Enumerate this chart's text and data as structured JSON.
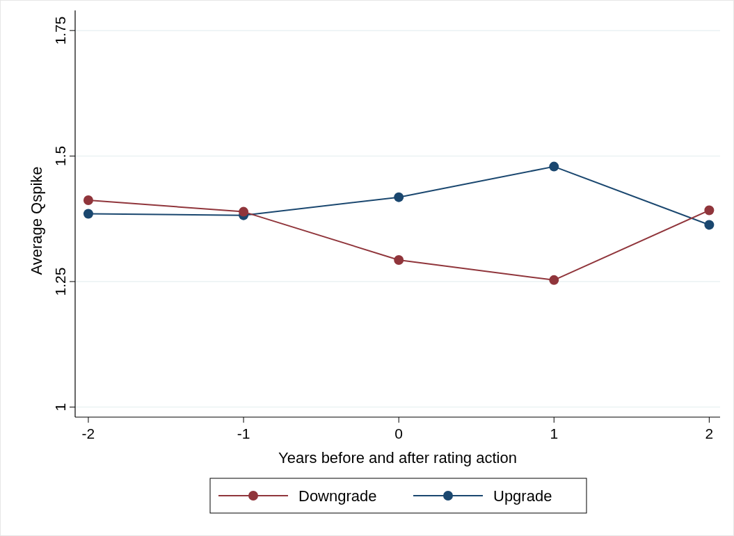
{
  "chart_data": {
    "type": "line",
    "xlabel": "Years before and after rating action",
    "ylabel": "Average Qspike",
    "x": [
      -2,
      -1,
      0,
      1,
      2
    ],
    "series": [
      {
        "name": "Downgrade",
        "color": "#90353b",
        "values": [
          1.412,
          1.389,
          1.293,
          1.253,
          1.392
        ]
      },
      {
        "name": "Upgrade",
        "color": "#1a476f",
        "values": [
          1.385,
          1.382,
          1.418,
          1.479,
          1.363
        ]
      }
    ],
    "xlim": [
      -2.085,
      2.07
    ],
    "xticks": [
      -2,
      -1,
      0,
      1,
      2
    ],
    "ylim": [
      0.98,
      1.79
    ],
    "yticks": [
      1,
      1.25,
      1.5,
      1.75
    ],
    "grid": "y",
    "legend": "bottom",
    "marker": "circle"
  }
}
